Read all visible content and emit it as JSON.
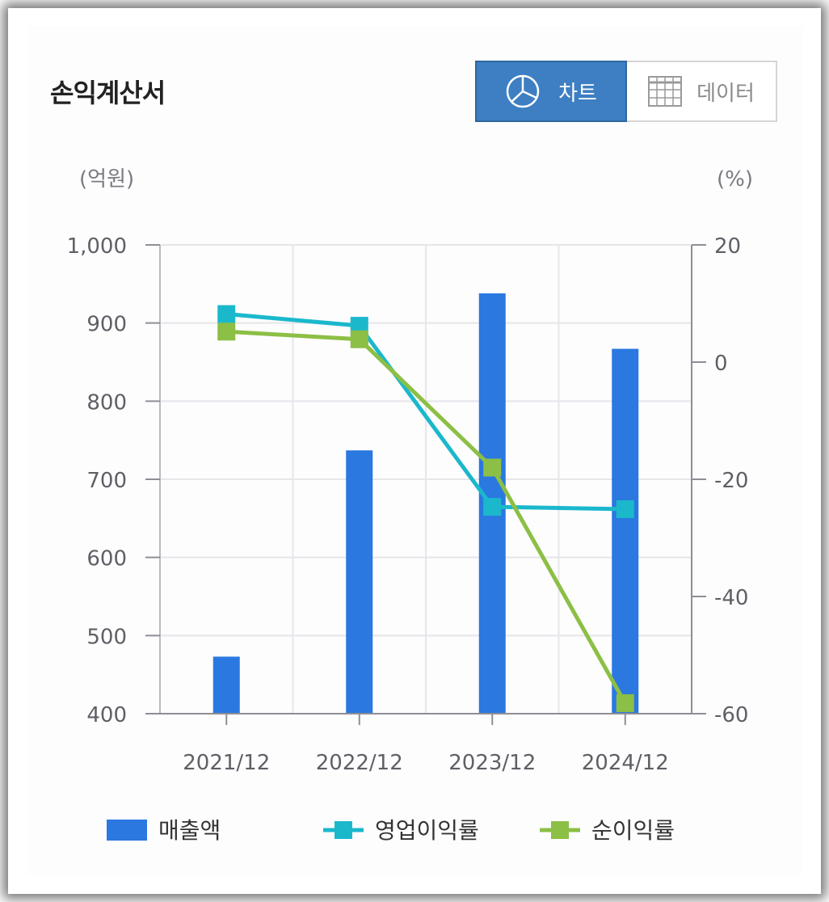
{
  "header": {
    "title": "손익계산서"
  },
  "toggle": {
    "chart_label": "차트",
    "data_label": "데이터"
  },
  "chart_data": {
    "type": "bar+line",
    "categories": [
      "2021/12",
      "2022/12",
      "2023/12",
      "2024/12"
    ],
    "left_axis": {
      "unit": "(억원)",
      "min": 400,
      "max": 1000,
      "ticks": [
        400,
        500,
        600,
        700,
        800,
        900,
        1000
      ],
      "tick_labels": [
        "400",
        "500",
        "600",
        "700",
        "800",
        "900",
        "1,000"
      ]
    },
    "right_axis": {
      "unit": "(%)",
      "min": -60,
      "max": 20,
      "ticks": [
        -60,
        -40,
        -20,
        0,
        20
      ],
      "tick_labels": [
        "-60",
        "-40",
        "-20",
        "0",
        "20"
      ]
    },
    "grid": true,
    "legend_position": "bottom",
    "series": [
      {
        "name": "매출액",
        "type": "bar",
        "axis": "left",
        "color": "#2a78e0",
        "values": [
          473,
          737,
          938,
          867
        ]
      },
      {
        "name": "영업이익률",
        "type": "line",
        "axis": "right",
        "color": "#1bb8cc",
        "values": [
          8.2,
          6.2,
          -24.7,
          -25.1
        ]
      },
      {
        "name": "순이익률",
        "type": "line",
        "axis": "right",
        "color": "#8cbf45",
        "values": [
          5.2,
          3.9,
          -18.0,
          -58.2
        ]
      }
    ]
  }
}
